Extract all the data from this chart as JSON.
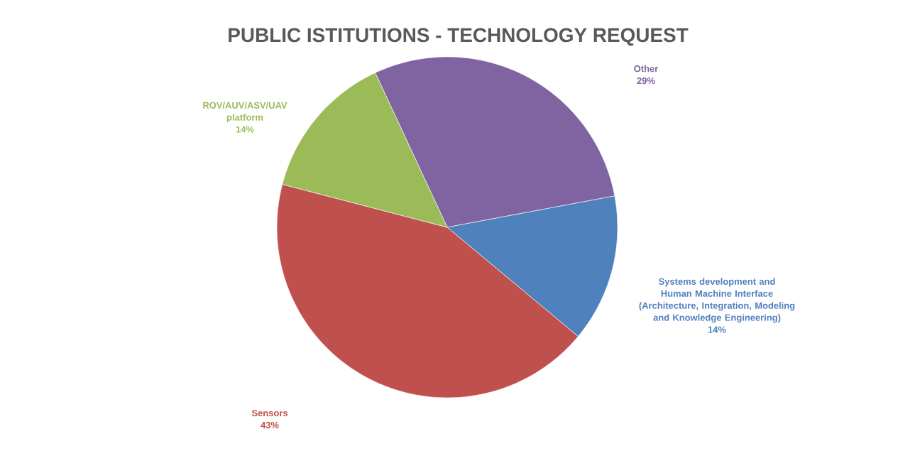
{
  "chart_data": {
    "type": "pie",
    "title": "PUBLIC ISTITUTIONS - TECHNOLOGY REQUEST",
    "categories": [
      "Other",
      "Systems development and Human Machine Interface (Architecture, Integration, Modeling and Knowledge Engineering)",
      "Sensors",
      "ROV/AUV/ASV/UAV platform"
    ],
    "values": [
      29,
      14,
      43,
      14
    ],
    "value_labels": [
      "29%",
      "14%",
      "43%",
      "14%"
    ],
    "colors": [
      "#8064a2",
      "#4f81bd",
      "#c0504d",
      "#9bbb59"
    ]
  }
}
